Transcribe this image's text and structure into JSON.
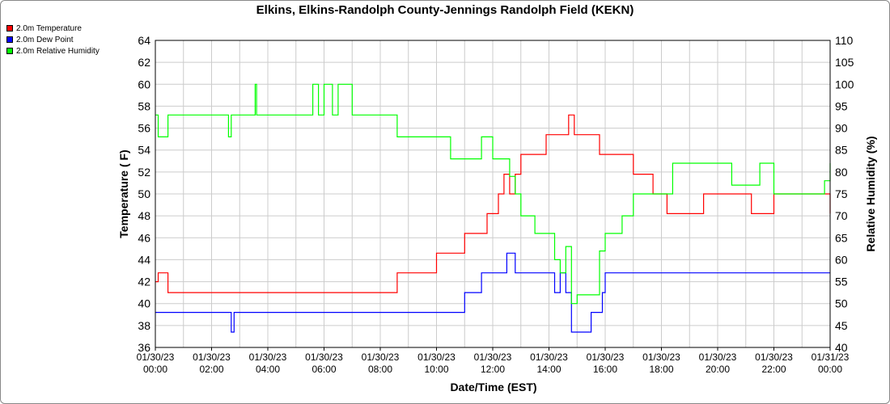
{
  "colors": {
    "temperature": "#ff0000",
    "dew_point": "#0000ff",
    "humidity": "#00ff00",
    "grid": "#cccccc"
  },
  "chart_data": {
    "type": "line",
    "title": "Elkins, Elkins-Randolph County-Jennings Randolph Field (KEKN)",
    "xlabel": "Date/Time (EST)",
    "ylabel": "Temperature ( F)",
    "y2label": "Relative Humidity (%)",
    "ylim": [
      36,
      64
    ],
    "y2lim": [
      40,
      110
    ],
    "xlim": [
      0,
      24
    ],
    "grid": true,
    "legend_position": "top-left",
    "yticks": [
      "36",
      "38",
      "40",
      "42",
      "44",
      "46",
      "48",
      "50",
      "52",
      "54",
      "56",
      "58",
      "60",
      "62",
      "64"
    ],
    "y2ticks": [
      "40",
      "45",
      "50",
      "55",
      "60",
      "65",
      "70",
      "75",
      "80",
      "85",
      "90",
      "95",
      "100",
      "105",
      "110"
    ],
    "xticks": [
      {
        "date": "01/30/23",
        "time": "00:00"
      },
      {
        "date": "01/30/23",
        "time": "02:00"
      },
      {
        "date": "01/30/23",
        "time": "04:00"
      },
      {
        "date": "01/30/23",
        "time": "06:00"
      },
      {
        "date": "01/30/23",
        "time": "08:00"
      },
      {
        "date": "01/30/23",
        "time": "10:00"
      },
      {
        "date": "01/30/23",
        "time": "12:00"
      },
      {
        "date": "01/30/23",
        "time": "14:00"
      },
      {
        "date": "01/30/23",
        "time": "16:00"
      },
      {
        "date": "01/30/23",
        "time": "18:00"
      },
      {
        "date": "01/30/23",
        "time": "20:00"
      },
      {
        "date": "01/30/23",
        "time": "22:00"
      },
      {
        "date": "01/31/23",
        "time": "00:00"
      }
    ],
    "series": [
      {
        "name": "2.0m Temperature",
        "axis": "left",
        "color": "#ff0000",
        "x": [
          0,
          0.1,
          0.4,
          0.45,
          0.85,
          1.0,
          1.5,
          2.0,
          3.0,
          3.5,
          4.0,
          4.5,
          5.0,
          5.5,
          5.9,
          6.0,
          6.5,
          7.0,
          7.5,
          8.0,
          8.5,
          8.6,
          9.0,
          9.5,
          10.0,
          10.5,
          11.0,
          11.5,
          11.8,
          12.0,
          12.2,
          12.4,
          12.6,
          12.8,
          13.0,
          13.3,
          13.6,
          13.9,
          14.1,
          14.5,
          14.7,
          14.9,
          15.2,
          15.5,
          15.8,
          16.2,
          16.6,
          17.0,
          17.3,
          17.7,
          18.0,
          18.2,
          18.5,
          18.9,
          19.2,
          19.5,
          20.0,
          20.5,
          21.0,
          21.2,
          21.5,
          22.0,
          22.5,
          23.0,
          23.5,
          23.8,
          24.0
        ],
        "values": [
          42,
          42.8,
          42.8,
          41,
          41,
          41,
          41,
          41,
          41,
          41,
          41,
          41,
          41,
          41,
          41,
          41,
          41,
          41,
          41,
          41,
          41,
          42.8,
          42.8,
          42.8,
          44.6,
          44.6,
          46.4,
          46.4,
          48.2,
          48.2,
          50,
          51.8,
          50,
          51.8,
          53.6,
          53.6,
          53.6,
          55.4,
          55.4,
          55.4,
          57.2,
          55.4,
          55.4,
          55.4,
          53.6,
          53.6,
          53.6,
          51.8,
          51.8,
          50,
          50,
          48.2,
          48.2,
          48.2,
          48.2,
          50,
          50,
          50,
          50,
          48.2,
          48.2,
          50,
          50,
          50,
          50,
          50,
          48.2
        ]
      },
      {
        "name": "2.0m Dew Point",
        "axis": "left",
        "color": "#0000ff",
        "x": [
          0,
          0.5,
          1.0,
          1.5,
          2.0,
          2.6,
          2.7,
          2.8,
          3.0,
          4.0,
          5.0,
          6.0,
          7.0,
          8.0,
          9.0,
          9.5,
          10.0,
          10.5,
          11.0,
          11.5,
          11.6,
          12.0,
          12.3,
          12.5,
          12.8,
          13.0,
          13.5,
          14.0,
          14.2,
          14.4,
          14.6,
          14.8,
          15.0,
          15.2,
          15.5,
          15.9,
          16.0,
          16.5,
          17.0,
          18.0,
          19.0,
          20.0,
          21.0,
          22.0,
          23.0,
          24.0
        ],
        "values": [
          39.2,
          39.2,
          39.2,
          39.2,
          39.2,
          39.2,
          37.4,
          39.2,
          39.2,
          39.2,
          39.2,
          39.2,
          39.2,
          39.2,
          39.2,
          39.2,
          39.2,
          39.2,
          41,
          41,
          42.8,
          42.8,
          42.8,
          44.6,
          42.8,
          42.8,
          42.8,
          42.8,
          41,
          42.8,
          41,
          37.4,
          37.4,
          37.4,
          39.2,
          41,
          42.8,
          42.8,
          42.8,
          42.8,
          42.8,
          42.8,
          42.8,
          42.8,
          42.8,
          42.8
        ]
      },
      {
        "name": "2.0m Relative Humidity",
        "axis": "right",
        "color": "#00ff00",
        "x": [
          0,
          0.1,
          0.35,
          0.45,
          0.9,
          1.5,
          2.0,
          2.5,
          2.6,
          2.7,
          3.0,
          3.5,
          3.55,
          3.6,
          4.0,
          4.5,
          5.0,
          5.5,
          5.6,
          5.8,
          6.0,
          6.3,
          6.5,
          7.0,
          7.5,
          8.0,
          8.5,
          8.6,
          9.0,
          9.3,
          9.5,
          10.0,
          10.5,
          11.0,
          11.5,
          11.6,
          11.8,
          12.0,
          12.2,
          12.4,
          12.6,
          12.8,
          13.0,
          13.5,
          13.8,
          14.0,
          14.2,
          14.4,
          14.6,
          14.8,
          15.0,
          15.4,
          15.8,
          16.0,
          16.6,
          17.0,
          17.4,
          17.6,
          18.0,
          18.2,
          18.4,
          18.8,
          19.0,
          19.4,
          20.0,
          20.5,
          21.0,
          21.2,
          21.5,
          21.8,
          22.0,
          22.5,
          23.0,
          23.5,
          23.8,
          24.0
        ],
        "values": [
          93,
          88,
          88,
          93,
          93,
          93,
          93,
          93,
          88,
          93,
          93,
          93,
          100,
          93,
          93,
          93,
          93,
          93,
          100,
          93,
          100,
          93,
          100,
          93,
          93,
          93,
          93,
          88,
          88,
          88,
          88,
          88,
          83,
          83,
          83,
          88,
          88,
          83,
          83,
          83,
          79,
          75,
          70,
          66,
          66,
          66,
          60,
          57,
          63,
          50,
          52,
          52,
          62,
          66,
          70,
          75,
          75,
          75,
          75,
          75,
          82,
          82,
          82,
          82,
          82,
          77,
          77,
          77,
          82,
          82,
          75,
          75,
          75,
          75,
          78,
          82
        ]
      }
    ]
  }
}
